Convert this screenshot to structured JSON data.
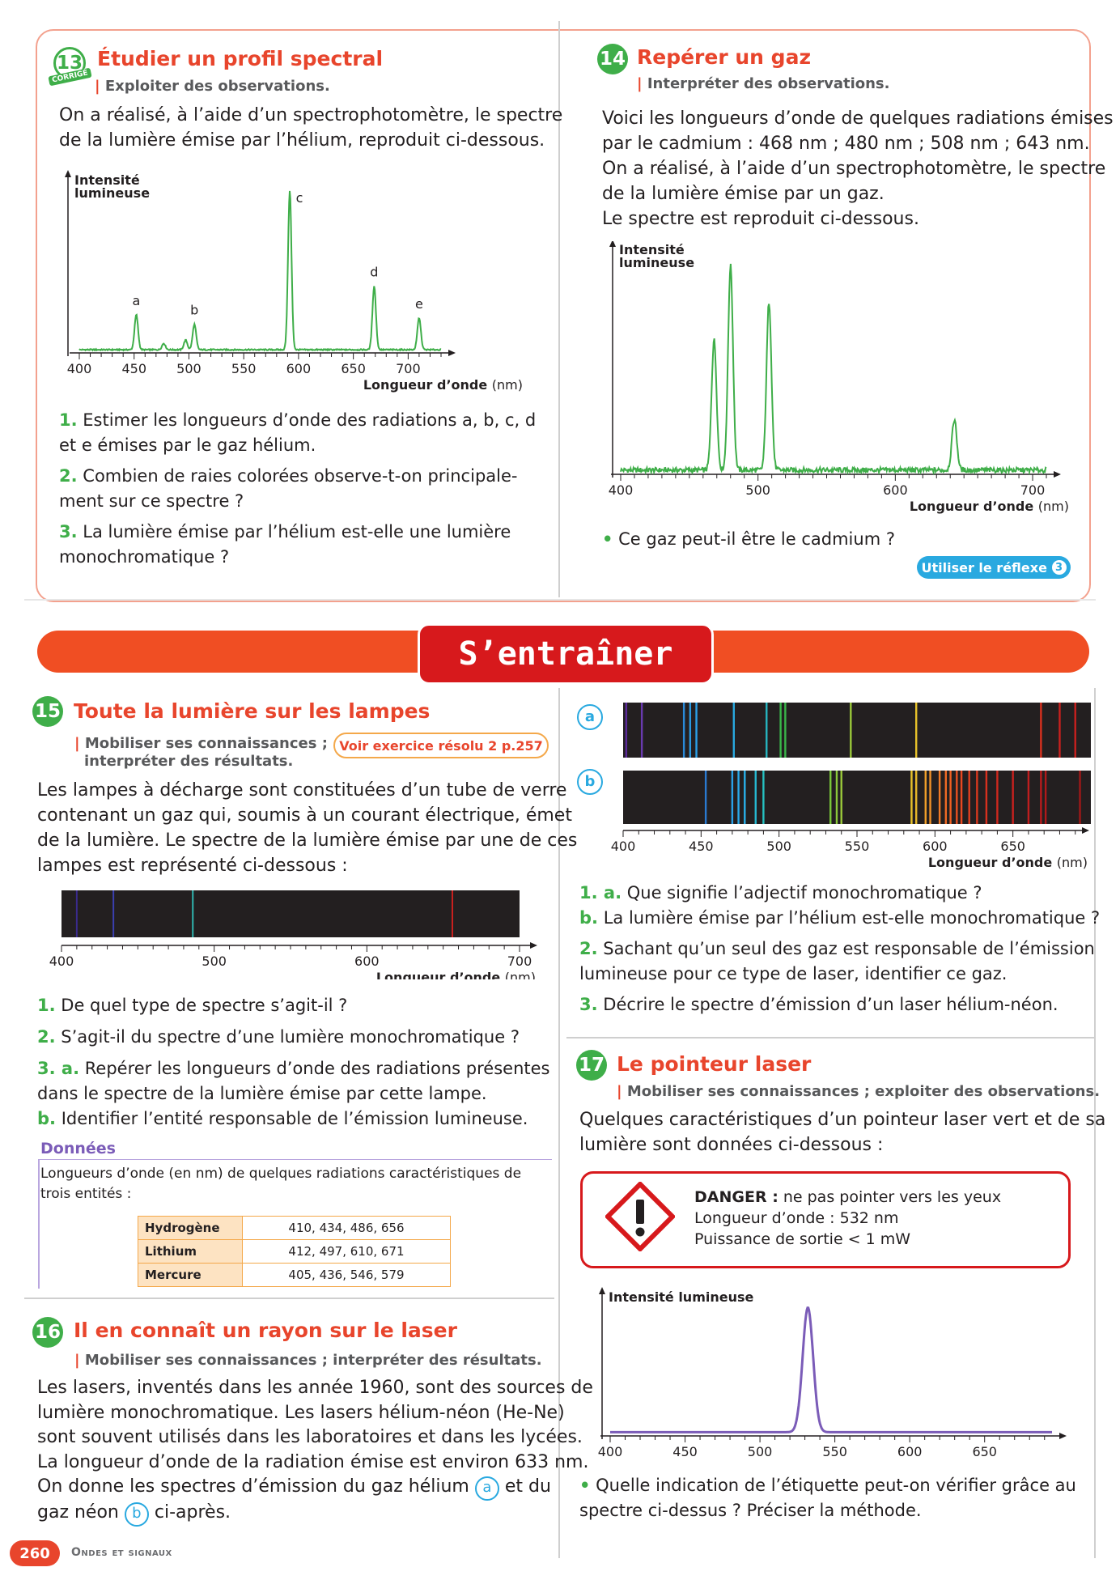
{
  "ex13": {
    "number": "13",
    "corrige": "CORRIGÉ",
    "title": "Étudier un profil spectral",
    "skill": "Exploiter des observations.",
    "intro_1": "On a réalisé, à l’aide d’un spectrophotomètre, le spectre",
    "intro_2": "de la lumière émise par l’hélium, reproduit ci-dessous.",
    "chart_ylabel_1": "Intensité",
    "chart_ylabel_2": "lumineuse",
    "q1_num": "1.",
    "q1_line1": "Estimer les longueurs d’onde des radiations a, b, c, d",
    "q1_line2": "et e émises par le gaz hélium.",
    "q2_num": "2.",
    "q2_line1": "Combien de raies colorées observe-t-on principale-",
    "q2_line2": "ment sur ce spectre ?",
    "q3_num": "3.",
    "q3_line1": "La lumière émise par l’hélium est-elle une lumière",
    "q3_line2": "monochromatique ?"
  },
  "ex14": {
    "number": "14",
    "title": "Repérer un gaz",
    "skill": "Interpréter des observations.",
    "text_1": "Voici les longueurs d’onde de quelques radiations émises",
    "text_2": "par le cadmium : 468 nm ; 480 nm ; 508 nm ; 643 nm.",
    "text_3": "On a réalisé, à l’aide d’un spectrophotomètre, le spectre",
    "text_4": "de la lumière émise par un gaz.",
    "text_5": "Le spectre est reproduit ci-dessous.",
    "chart_ylabel_1": "Intensité",
    "chart_ylabel_2": "lumineuse",
    "question": "Ce gaz peut-il être le cadmium ?",
    "reflex": "Utiliser le réflexe",
    "reflex_num": "3"
  },
  "banner": "S’entraîner",
  "ex15": {
    "number": "15",
    "title": "Toute la lumière sur les lampes",
    "skill_1": "Mobiliser ses connaissances ;",
    "skill_2": "interpréter des résultats.",
    "link": "Voir exercice résolu 2 p.257",
    "text_1": "Les lampes à décharge sont constituées d’un tube de verre",
    "text_2": "contenant un gaz qui, soumis à un courant électrique, émet",
    "text_3": "de la lumière. Le spectre de la lumière émise par une de ces",
    "text_4": "lampes est représenté ci-dessous :",
    "q1_num": "1.",
    "q1": "De quel type de spectre s’agit-il ?",
    "q2_num": "2.",
    "q2": "S’agit-il du spectre d’une lumière monochromatique ?",
    "q3a_num": "3. a.",
    "q3a_1": "Repérer les longueurs d’onde des radiations présentes",
    "q3a_2": "dans le spectre de la lumière émise par cette lampe.",
    "q3b_num": "b.",
    "q3b": "Identifier l’entité responsable de l’émission lumineuse.",
    "data_title": "Données",
    "data_text_1": "Longueurs d’onde (en nm) de quelques radiations caractéristiques de",
    "data_text_2": "trois entités :",
    "table": [
      {
        "name": "Hydrogène",
        "values": "410, 434, 486, 656"
      },
      {
        "name": "Lithium",
        "values": "412, 497, 610, 671"
      },
      {
        "name": "Mercure",
        "values": "405, 436, 546, 579"
      }
    ]
  },
  "ex16": {
    "number": "16",
    "title": "Il en connaît un rayon sur le laser",
    "skill": "Mobiliser ses connaissances ; interpréter des résultats.",
    "text_1": "Les lasers, inventés dans les année 1960, sont des sources de",
    "text_2": "lumière monochromatique. Les lasers hélium-néon (He-Ne)",
    "text_3": "sont souvent utilisés dans les laboratoires et dans les lycées.",
    "text_4": "La longueur d’onde de la radiation émise est environ 633 nm.",
    "text_5a": "On donne les spectres d’émission du gaz hélium",
    "text_5b": "et du",
    "text_6a": "gaz néon",
    "text_6b": "ci-après.",
    "label_a": "a",
    "label_b": "b",
    "q1a_num": "1. a.",
    "q1a": "Que signifie l’adjectif monochromatique ?",
    "q1b_num": "b.",
    "q1b": "La lumière émise par l’hélium est-elle monochromatique ?",
    "q2_num": "2.",
    "q2_1": "Sachant qu’un seul des gaz est responsable de l’émission",
    "q2_2": "lumineuse pour ce type de laser, identifier ce gaz.",
    "q3_num": "3.",
    "q3": "Décrire le spectre d’émission d’un laser hélium-néon."
  },
  "ex17": {
    "number": "17",
    "title": "Le pointeur laser",
    "skill": "Mobiliser ses connaissances ; exploiter des observations.",
    "text_1": "Quelques caractéristiques d’un pointeur laser vert et de sa",
    "text_2": "lumière sont données ci-dessous :",
    "danger_label": "DANGER :",
    "danger_text": "ne pas pointer vers les yeux",
    "wavelength": "Longueur d’onde : 532 nm",
    "power": "Puissance de sortie < 1 mW",
    "chart_ylabel": "Intensité lumineuse",
    "question_1": "Quelle indication de l’étiquette peut-on vérifier grâce au",
    "question_2": "spectre ci-dessus ? Préciser la méthode."
  },
  "footer": {
    "page": "260",
    "section": "Ondes et signaux"
  },
  "colors": {
    "accent_red": "#e8452c",
    "accent_green": "#3fae49",
    "banner": "#f04e23"
  },
  "chart_data": [
    {
      "type": "line",
      "name_ref": "ex13",
      "xlabel": "Longueur d’onde (nm)",
      "ylabel": "Intensité lumineuse",
      "xlim": [
        400,
        730
      ],
      "x_ticks": [
        400,
        450,
        500,
        550,
        600,
        650,
        700
      ],
      "peaks": [
        {
          "label": "a",
          "x": 452,
          "y": 0.22
        },
        {
          "label": "",
          "x": 477,
          "y": 0.04
        },
        {
          "label": "",
          "x": 497,
          "y": 0.06
        },
        {
          "label": "b",
          "x": 505,
          "y": 0.16
        },
        {
          "label": "c",
          "x": 592,
          "y": 1.0
        },
        {
          "label": "d",
          "x": 669,
          "y": 0.4
        },
        {
          "label": "e",
          "x": 710,
          "y": 0.2
        }
      ]
    },
    {
      "type": "line",
      "name_ref": "ex14",
      "xlabel": "Longueur d’onde (nm)",
      "ylabel": "Intensité lumineuse",
      "xlim": [
        400,
        710
      ],
      "x_ticks": [
        400,
        500,
        600,
        700
      ],
      "peaks": [
        {
          "x": 468,
          "y": 0.62
        },
        {
          "x": 480,
          "y": 0.97
        },
        {
          "x": 508,
          "y": 0.8
        },
        {
          "x": 643,
          "y": 0.24
        }
      ]
    },
    {
      "type": "spectrum",
      "name_ref": "ex15",
      "xlabel": "Longueur d’onde (nm)",
      "xlim": [
        400,
        700
      ],
      "x_ticks": [
        400,
        500,
        600,
        700
      ],
      "lines": [
        {
          "x": 410,
          "color": "#3a2a8c"
        },
        {
          "x": 434,
          "color": "#3b3fb0"
        },
        {
          "x": 486,
          "color": "#2fb6b0"
        },
        {
          "x": 656,
          "color": "#c8201e"
        }
      ]
    },
    {
      "type": "spectrum",
      "name_ref": "ex16-helium-a",
      "xlim": [
        400,
        700
      ],
      "lines": [
        {
          "x": 402,
          "color": "#5a2a9a"
        },
        {
          "x": 412,
          "color": "#6a3ab0"
        },
        {
          "x": 439,
          "color": "#2a8ad8"
        },
        {
          "x": 443,
          "color": "#2a9ae0"
        },
        {
          "x": 447,
          "color": "#2aa0e8"
        },
        {
          "x": 471,
          "color": "#29a9e0"
        },
        {
          "x": 492,
          "color": "#26b5c0"
        },
        {
          "x": 501,
          "color": "#3ab54a"
        },
        {
          "x": 504,
          "color": "#3ab54a"
        },
        {
          "x": 546,
          "color": "#9ac83a"
        },
        {
          "x": 588,
          "color": "#e8c22a"
        },
        {
          "x": 668,
          "color": "#d8301e"
        },
        {
          "x": 680,
          "color": "#c8201e"
        },
        {
          "x": 690,
          "color": "#c8201e"
        }
      ]
    },
    {
      "type": "spectrum",
      "name_ref": "ex16-neon-b",
      "xlim": [
        400,
        700
      ],
      "xlabel": "Longueur d’onde (nm)",
      "x_ticks": [
        400,
        450,
        500,
        550,
        600,
        650
      ],
      "lines": [
        {
          "x": 453,
          "color": "#2a7ad0"
        },
        {
          "x": 470,
          "color": "#2aa0e8"
        },
        {
          "x": 474,
          "color": "#2aa8e8"
        },
        {
          "x": 478,
          "color": "#2ab0e8"
        },
        {
          "x": 485,
          "color": "#26b8d0"
        },
        {
          "x": 490,
          "color": "#26c0c0"
        },
        {
          "x": 533,
          "color": "#7ac83a"
        },
        {
          "x": 537,
          "color": "#8ac83a"
        },
        {
          "x": 540,
          "color": "#9ac83a"
        },
        {
          "x": 585,
          "color": "#e8c22a"
        },
        {
          "x": 588,
          "color": "#e8b82a"
        },
        {
          "x": 594,
          "color": "#f0a02a"
        },
        {
          "x": 597,
          "color": "#f09028"
        },
        {
          "x": 603,
          "color": "#f07a26"
        },
        {
          "x": 607,
          "color": "#f06a24"
        },
        {
          "x": 610,
          "color": "#f06022"
        },
        {
          "x": 614,
          "color": "#e85020"
        },
        {
          "x": 617,
          "color": "#e84820"
        },
        {
          "x": 622,
          "color": "#e04020"
        },
        {
          "x": 627,
          "color": "#d8381e"
        },
        {
          "x": 633,
          "color": "#d8301e"
        },
        {
          "x": 640,
          "color": "#d0281e"
        },
        {
          "x": 650,
          "color": "#c8201e"
        },
        {
          "x": 660,
          "color": "#c01e1e"
        },
        {
          "x": 668,
          "color": "#b81c1c"
        },
        {
          "x": 671,
          "color": "#b01a1a"
        },
        {
          "x": 693,
          "color": "#a01818"
        }
      ]
    },
    {
      "type": "line",
      "name_ref": "ex17",
      "xlabel": "Longueur d’onde (nm)",
      "ylabel": "Intensité lumineuse",
      "xlim": [
        400,
        695
      ],
      "x_ticks": [
        400,
        450,
        500,
        550,
        600,
        650
      ],
      "peaks": [
        {
          "x": 532,
          "y": 1.0
        }
      ],
      "baseline": 0.03
    }
  ]
}
